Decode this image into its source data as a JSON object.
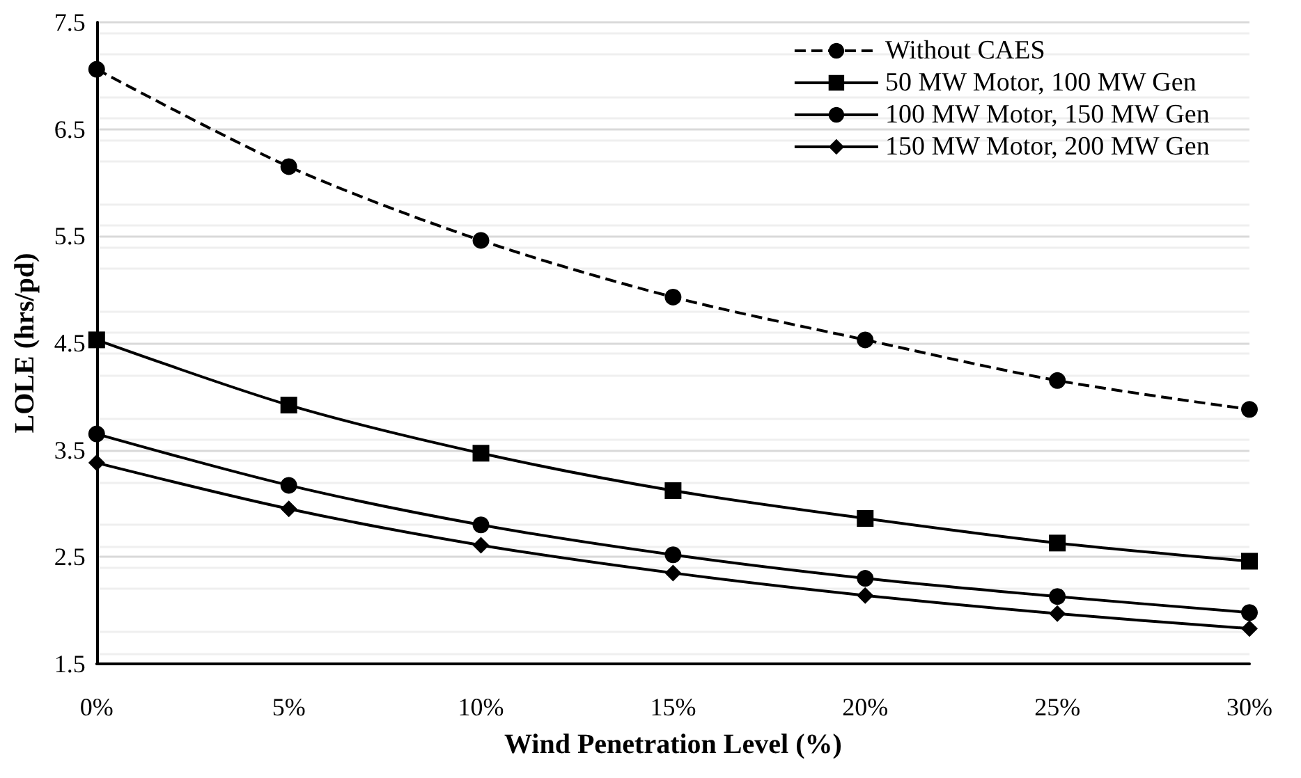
{
  "chart_data": {
    "type": "line",
    "xlabel": "Wind Penetration Level (%)",
    "ylabel": "LOLE (hrs/pd)",
    "categories": [
      "0%",
      "5%",
      "10%",
      "15%",
      "20%",
      "25%",
      "30%"
    ],
    "series": [
      {
        "name": "Without CAES",
        "color": "#000000",
        "marker": "circle",
        "line_style": "dashed",
        "values": [
          7.06,
          6.15,
          5.46,
          4.93,
          4.53,
          4.15,
          3.88
        ]
      },
      {
        "name": "50 MW Motor, 100 MW Gen",
        "color": "#000000",
        "marker": "square",
        "line_style": "solid",
        "values": [
          4.53,
          3.92,
          3.47,
          3.12,
          2.86,
          2.63,
          2.46
        ]
      },
      {
        "name": "100 MW Motor, 150 MW Gen",
        "color": "#000000",
        "marker": "circle",
        "line_style": "solid",
        "values": [
          3.65,
          3.17,
          2.8,
          2.52,
          2.3,
          2.13,
          1.98
        ]
      },
      {
        "name": "150 MW Motor, 200 MW Gen",
        "color": "#000000",
        "marker": "diamond",
        "line_style": "solid",
        "values": [
          3.38,
          2.95,
          2.61,
          2.35,
          2.14,
          1.97,
          1.83
        ]
      }
    ],
    "ylim": [
      1.5,
      7.5
    ],
    "yticks": [
      1.5,
      2.5,
      3.5,
      4.5,
      5.5,
      6.5,
      7.5
    ],
    "grid": "y",
    "legend": "top right"
  }
}
